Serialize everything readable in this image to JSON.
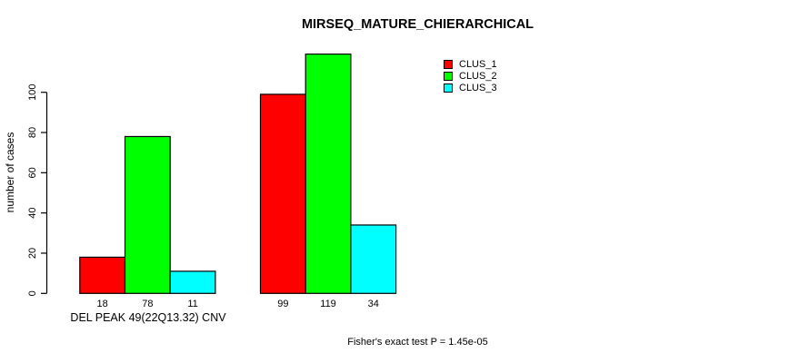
{
  "title": "MIRSEQ_MATURE_CHIERARCHICAL",
  "ylabel": "number of cases",
  "xlabel": "DEL PEAK 49(22Q13.32) CNV",
  "footnote": "Fisher's exact test P = 1.45e-05",
  "colors": {
    "clus_1": "#ff0000",
    "clus_2": "#00ff00",
    "clus_3": "#00ffff",
    "axis": "#000000",
    "background": "#ffffff"
  },
  "legend": {
    "position": "top-right",
    "items": [
      {
        "label": "CLUS_1",
        "color": "#ff0000"
      },
      {
        "label": "CLUS_2",
        "color": "#00ff00"
      },
      {
        "label": "CLUS_3",
        "color": "#00ffff"
      }
    ]
  },
  "chart_data": {
    "type": "bar",
    "title": "MIRSEQ_MATURE_CHIERARCHICAL",
    "xlabel": "DEL PEAK 49(22Q13.32) CNV",
    "ylabel": "number of cases",
    "categories": [
      "",
      ""
    ],
    "series": [
      {
        "name": "CLUS_1",
        "color": "#ff0000",
        "values": [
          18,
          99
        ]
      },
      {
        "name": "CLUS_2",
        "color": "#00ff00",
        "values": [
          78,
          119
        ]
      },
      {
        "name": "CLUS_3",
        "color": "#00ffff",
        "values": [
          11,
          34
        ]
      }
    ],
    "yticks": [
      0,
      20,
      40,
      60,
      80,
      100
    ],
    "ylim": [
      0,
      119
    ],
    "grid": false,
    "legend_position": "top-right",
    "bar_value_labels_shown": true,
    "annotation": "Fisher's exact test P = 1.45e-05"
  }
}
